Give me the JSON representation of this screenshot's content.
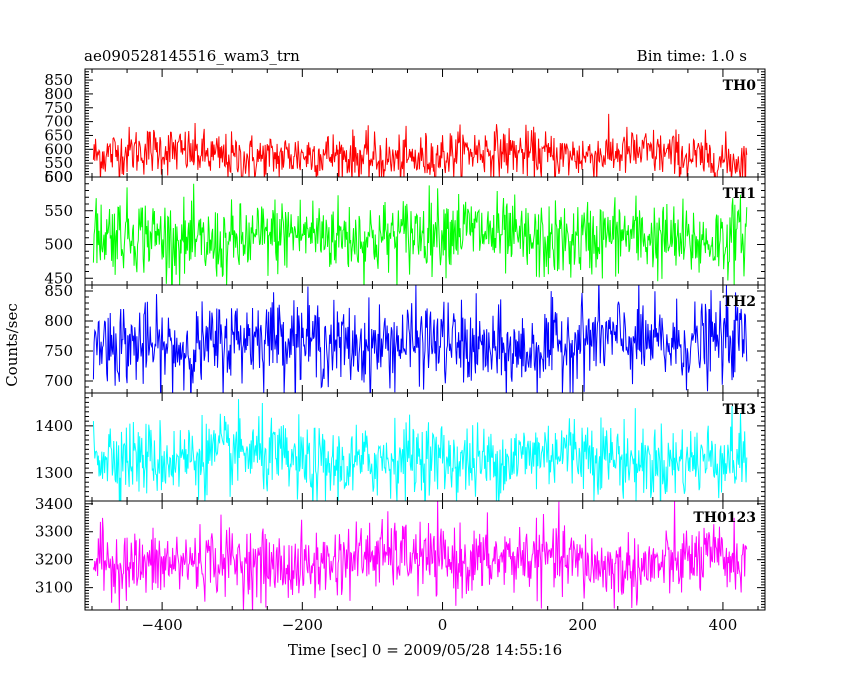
{
  "chart_data": {
    "type": "line",
    "title_left": "ae090528145516_wam3_trn",
    "title_right": "Bin time: 1.0 s",
    "xlabel": "Time [sec] 0 = 2009/05/28 14:55:16",
    "ylabel": "Counts/sec",
    "xlim": [
      -510,
      460
    ],
    "x_ticks": [
      -400,
      -200,
      0,
      200,
      400
    ],
    "x_range_data": [
      -498,
      434
    ],
    "bin_time": 1.0,
    "grid": false,
    "panels": [
      {
        "name": "TH0",
        "color": "#ff0000",
        "ylim": [
          500,
          890
        ],
        "y_ticks": [
          500,
          550,
          600,
          650,
          700,
          750,
          800,
          850
        ],
        "mean": 578,
        "std": 44
      },
      {
        "name": "TH1",
        "color": "#00ff00",
        "ylim": [
          440,
          600
        ],
        "y_ticks": [
          450,
          500,
          550,
          600
        ],
        "mean": 512,
        "std": 28
      },
      {
        "name": "TH2",
        "color": "#0000ff",
        "ylim": [
          680,
          860
        ],
        "y_ticks": [
          700,
          750,
          800,
          850
        ],
        "mean": 762,
        "std": 34
      },
      {
        "name": "TH3",
        "color": "#00ffff",
        "ylim": [
          1240,
          1470
        ],
        "y_ticks": [
          1300,
          1400
        ],
        "mean": 1330,
        "std": 40
      },
      {
        "name": "TH0123",
        "color": "#ff00ff",
        "ylim": [
          3020,
          3410
        ],
        "y_ticks": [
          3100,
          3200,
          3300,
          3400
        ],
        "mean": 3195,
        "std": 62
      }
    ]
  }
}
